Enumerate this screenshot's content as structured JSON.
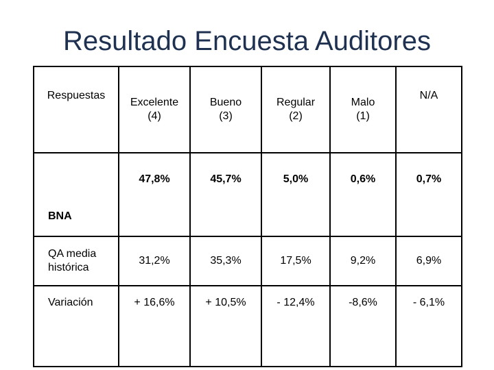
{
  "title": "Resultado Encuesta Auditores",
  "table": {
    "headers": [
      "Respuestas",
      "Excelente\n(4)",
      "Bueno\n(3)",
      "Regular\n(2)",
      "Malo\n(1)",
      "N/A"
    ],
    "header_lines": [
      [
        "Respuestas"
      ],
      [
        "Excelente",
        "(4)"
      ],
      [
        "Bueno",
        "(3)"
      ],
      [
        "Regular",
        "(2)"
      ],
      [
        "Malo",
        "(1)"
      ],
      [
        "N/A"
      ]
    ],
    "rows": [
      {
        "label_lines": [
          "BNA"
        ],
        "values": [
          "47,8%",
          "45,7%",
          "5,0%",
          "0,6%",
          "0,7%"
        ]
      },
      {
        "label_lines": [
          "QA media",
          "histórica"
        ],
        "values": [
          "31,2%",
          "35,3%",
          "17,5%",
          "9,2%",
          "6,9%"
        ]
      },
      {
        "label_lines": [
          "Variación"
        ],
        "values": [
          "+ 16,6%",
          "+ 10,5%",
          "- 12,4%",
          "-8,6%",
          "- 6,1%"
        ]
      }
    ]
  }
}
